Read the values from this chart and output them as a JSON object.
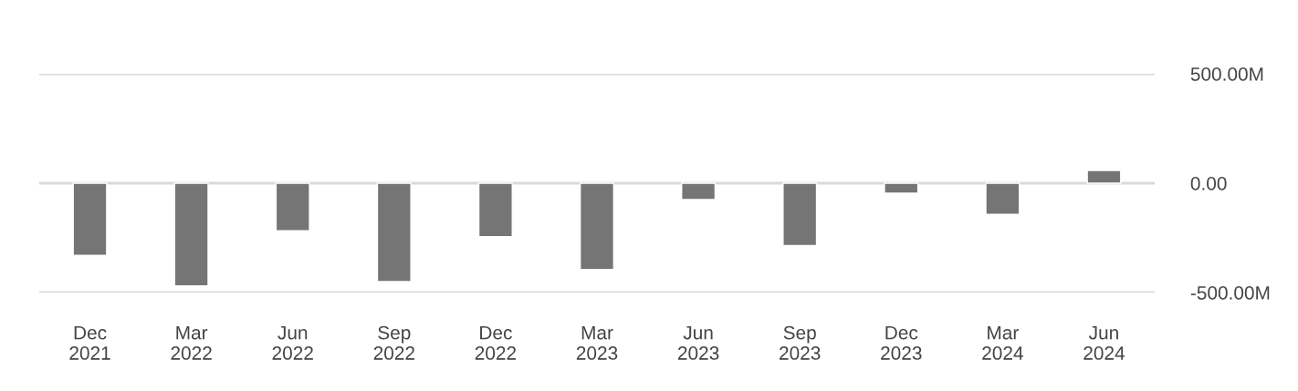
{
  "chart_data": {
    "type": "bar",
    "categories": [
      "Dec\n2021",
      "Mar\n2022",
      "Jun\n2022",
      "Sep\n2022",
      "Dec\n2022",
      "Mar\n2023",
      "Jun\n2023",
      "Sep\n2023",
      "Dec\n2023",
      "Mar\n2024",
      "Jun\n2024"
    ],
    "values": [
      -330,
      -470,
      -217,
      -450,
      -245,
      -395,
      -75,
      -285,
      -46,
      -142,
      58
    ],
    "color": "#757575",
    "ylim": [
      -500,
      500
    ],
    "yticks": [
      {
        "value": -500,
        "label": "-500.00M"
      },
      {
        "value": 0,
        "label": "0.00"
      },
      {
        "value": 500,
        "label": "500.00M"
      }
    ],
    "grid": "y"
  }
}
